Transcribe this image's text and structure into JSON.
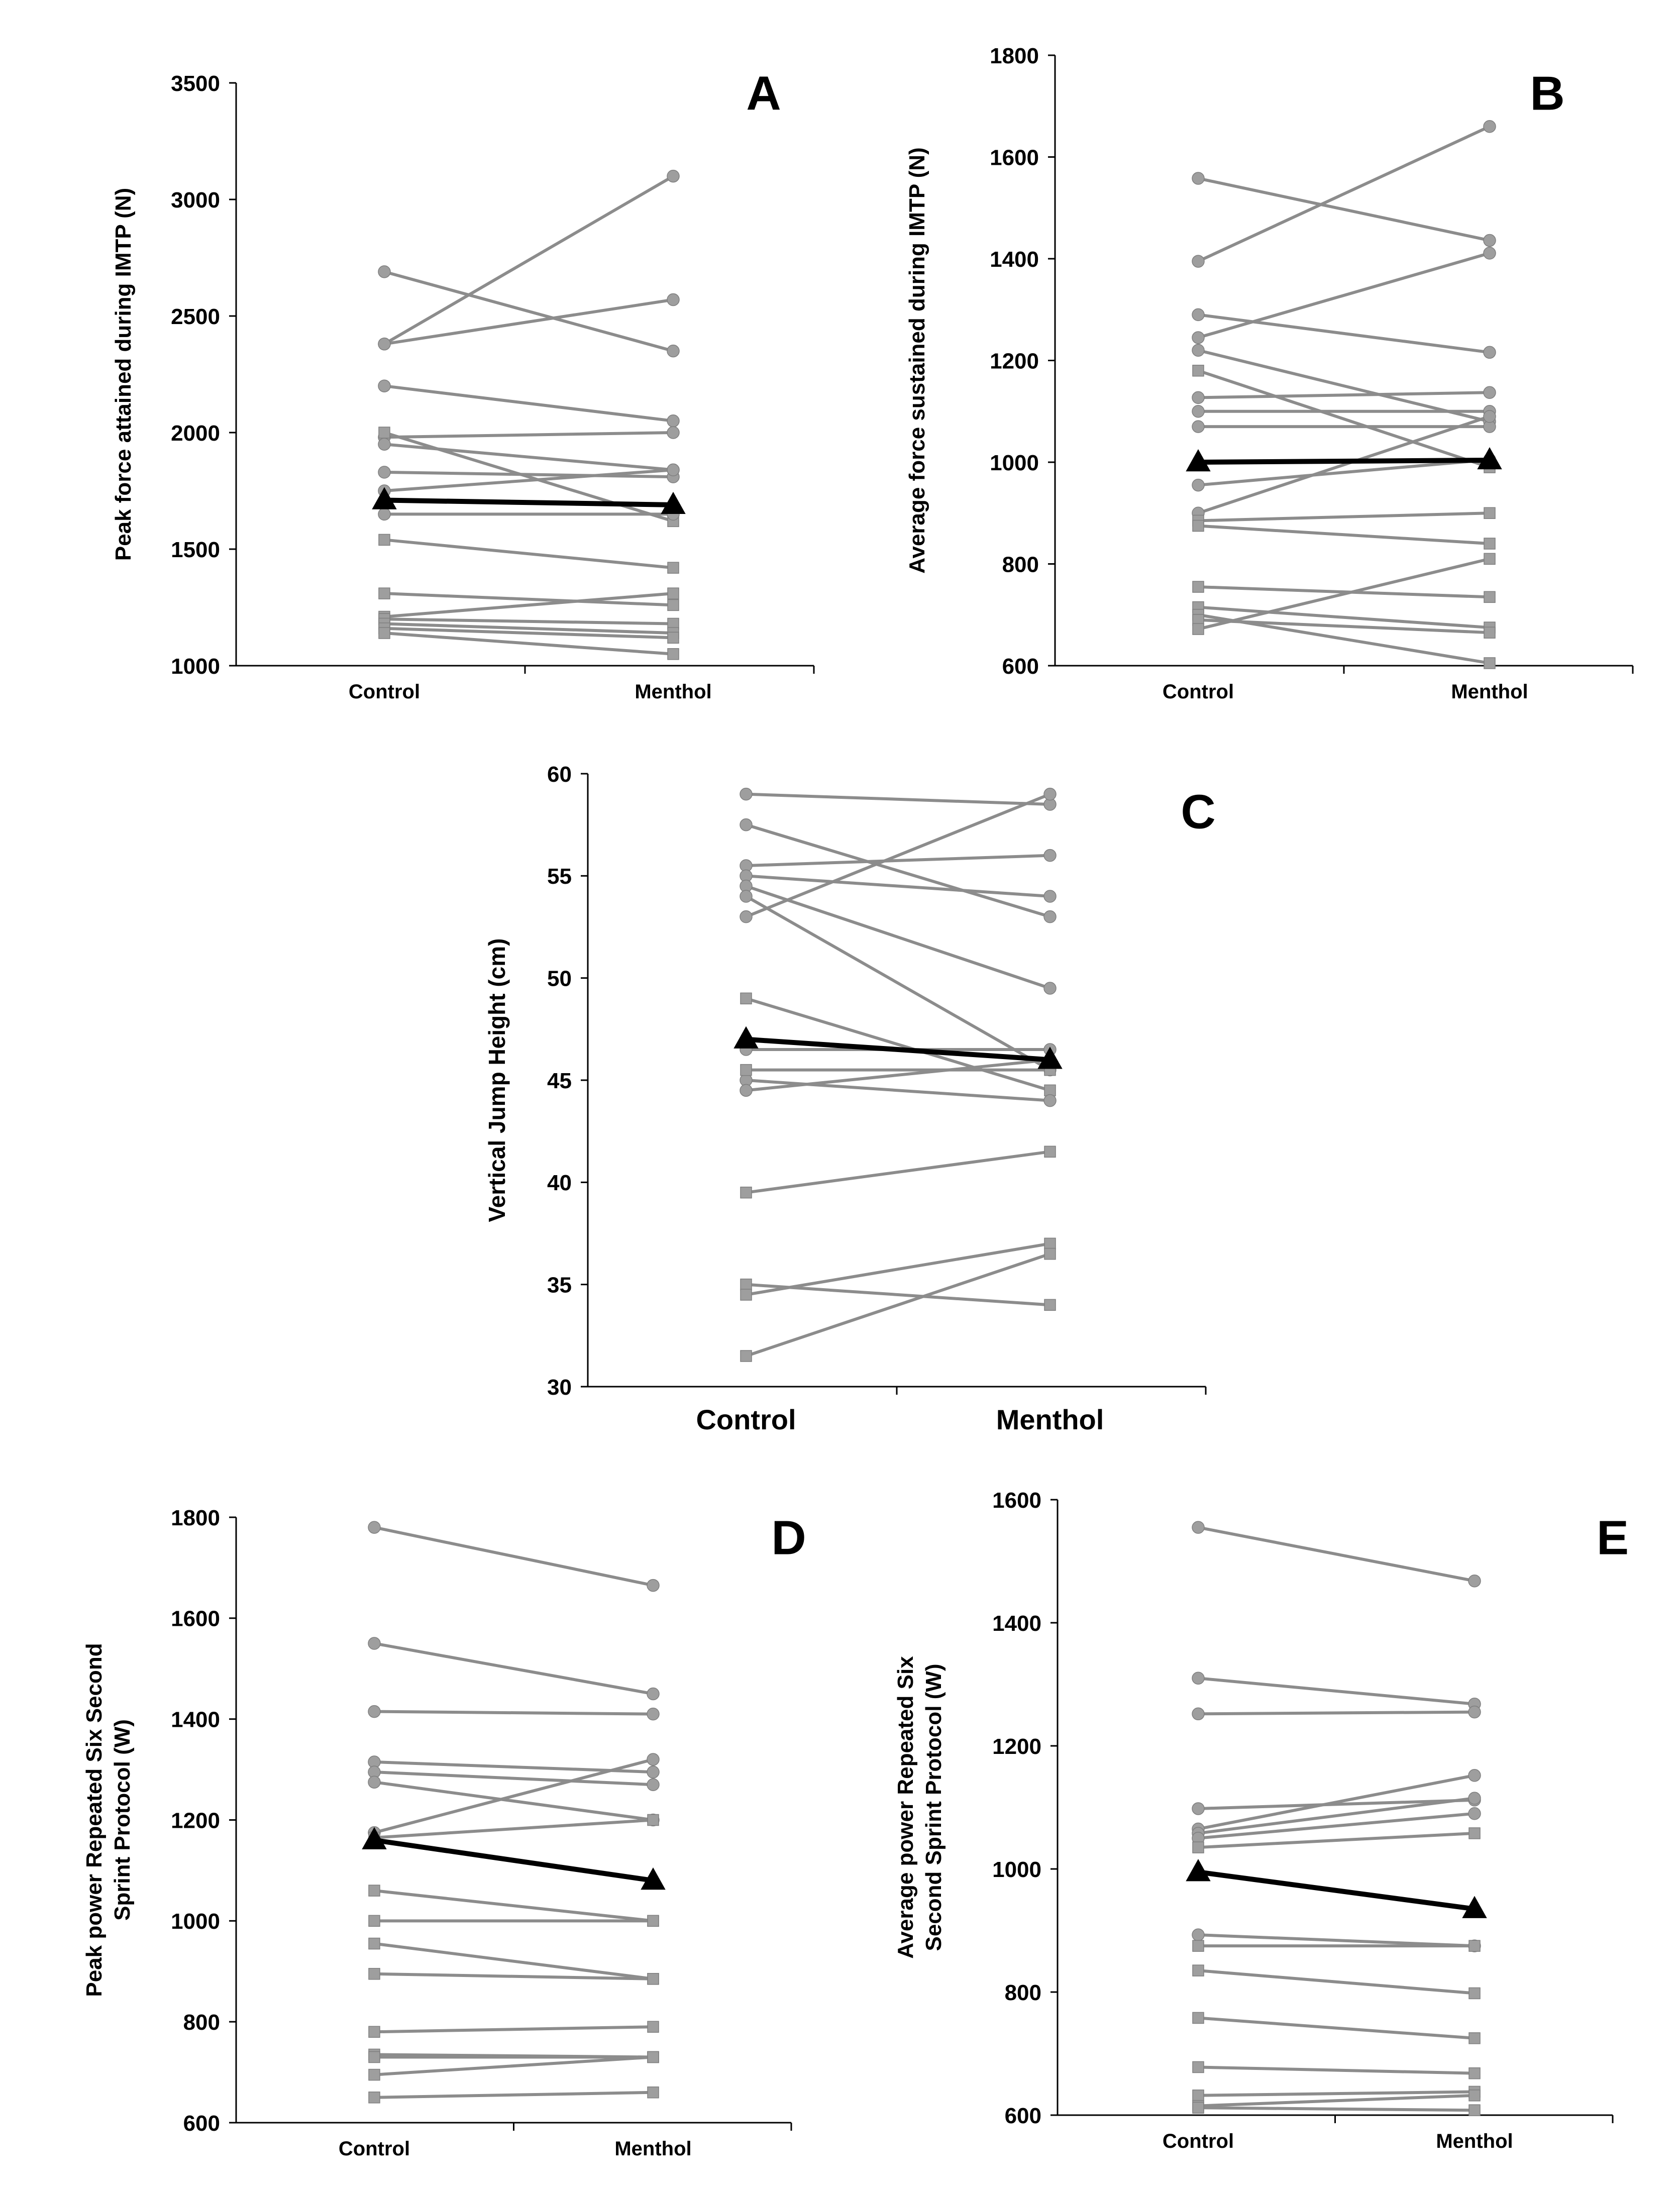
{
  "colors": {
    "subject": "#8c8c8c",
    "marker": "#9e9e9e",
    "mean": "#000000"
  },
  "chart_data": [
    {
      "panel": "A",
      "type": "line",
      "categories": [
        "Control",
        "Menthol"
      ],
      "ylabel": "Peak force attained during IMTP (N)",
      "ylim": [
        1000,
        3500
      ],
      "yticks": [
        1000,
        1500,
        2000,
        2500,
        3000,
        3500
      ],
      "series": [
        {
          "name": "s1",
          "marker": "circle",
          "values": [
            2380,
            3100
          ]
        },
        {
          "name": "s2",
          "marker": "circle",
          "values": [
            2690,
            2350
          ]
        },
        {
          "name": "s3",
          "marker": "circle",
          "values": [
            2380,
            2570
          ]
        },
        {
          "name": "s4",
          "marker": "circle",
          "values": [
            2200,
            2050
          ]
        },
        {
          "name": "s5",
          "marker": "circle",
          "values": [
            1980,
            2000
          ]
        },
        {
          "name": "s6",
          "marker": "circle",
          "values": [
            1950,
            1840
          ]
        },
        {
          "name": "s7",
          "marker": "circle",
          "values": [
            1830,
            1810
          ]
        },
        {
          "name": "s8",
          "marker": "circle",
          "values": [
            1750,
            1840
          ]
        },
        {
          "name": "s9",
          "marker": "square",
          "values": [
            2000,
            1620
          ]
        },
        {
          "name": "s10",
          "marker": "circle",
          "values": [
            1650,
            1650
          ]
        },
        {
          "name": "s11",
          "marker": "square",
          "values": [
            1540,
            1420
          ]
        },
        {
          "name": "s12",
          "marker": "square",
          "values": [
            1310,
            1260
          ]
        },
        {
          "name": "s13",
          "marker": "square",
          "values": [
            1210,
            1310
          ]
        },
        {
          "name": "s14",
          "marker": "square",
          "values": [
            1200,
            1180
          ]
        },
        {
          "name": "s15",
          "marker": "square",
          "values": [
            1180,
            1140
          ]
        },
        {
          "name": "s16",
          "marker": "square",
          "values": [
            1160,
            1120
          ]
        },
        {
          "name": "s17",
          "marker": "square",
          "values": [
            1140,
            1050
          ]
        },
        {
          "name": "Mean",
          "marker": "triangle",
          "mean": true,
          "values": [
            1710,
            1690
          ]
        }
      ]
    },
    {
      "panel": "B",
      "type": "line",
      "categories": [
        "Control",
        "Menthol"
      ],
      "ylabel": "Average force sustained during IMTP (N)",
      "ylim": [
        600,
        1800
      ],
      "yticks": [
        600,
        800,
        1000,
        1200,
        1400,
        1600,
        1800
      ],
      "series": [
        {
          "name": "s1",
          "marker": "circle",
          "values": [
            1558,
            1436
          ]
        },
        {
          "name": "s2",
          "marker": "circle",
          "values": [
            1395,
            1660
          ]
        },
        {
          "name": "s3",
          "marker": "circle",
          "values": [
            1290,
            1216
          ]
        },
        {
          "name": "s4",
          "marker": "circle",
          "values": [
            1245,
            1411
          ]
        },
        {
          "name": "s5",
          "marker": "circle",
          "values": [
            1220,
            1080
          ]
        },
        {
          "name": "s6",
          "marker": "circle",
          "values": [
            1127,
            1137
          ]
        },
        {
          "name": "s7",
          "marker": "circle",
          "values": [
            1100,
            1100
          ]
        },
        {
          "name": "s8",
          "marker": "circle",
          "values": [
            1070,
            1070
          ]
        },
        {
          "name": "s9",
          "marker": "square",
          "values": [
            1180,
            990
          ]
        },
        {
          "name": "s10",
          "marker": "circle",
          "values": [
            955,
            1005
          ]
        },
        {
          "name": "s11",
          "marker": "circle",
          "values": [
            900,
            1090
          ]
        },
        {
          "name": "s12",
          "marker": "square",
          "values": [
            885,
            900
          ]
        },
        {
          "name": "s13",
          "marker": "square",
          "values": [
            875,
            840
          ]
        },
        {
          "name": "s14",
          "marker": "square",
          "values": [
            755,
            735
          ]
        },
        {
          "name": "s15",
          "marker": "square",
          "values": [
            715,
            675
          ]
        },
        {
          "name": "s16",
          "marker": "square",
          "values": [
            700,
            605
          ]
        },
        {
          "name": "s17",
          "marker": "square",
          "values": [
            690,
            665
          ]
        },
        {
          "name": "s18",
          "marker": "square",
          "values": [
            672,
            810
          ]
        },
        {
          "name": "Mean",
          "marker": "triangle",
          "mean": true,
          "values": [
            1000,
            1004
          ]
        }
      ]
    },
    {
      "panel": "C",
      "type": "line",
      "categories": [
        "Control",
        "Menthol"
      ],
      "ylabel": "Vertical Jump Height (cm)",
      "ylim": [
        30,
        60
      ],
      "yticks": [
        30,
        35,
        40,
        45,
        50,
        55,
        60
      ],
      "series": [
        {
          "name": "s1",
          "marker": "circle",
          "values": [
            59.0,
            58.5
          ]
        },
        {
          "name": "s2",
          "marker": "circle",
          "values": [
            57.5,
            53.0
          ]
        },
        {
          "name": "s3",
          "marker": "circle",
          "values": [
            55.5,
            56.0
          ]
        },
        {
          "name": "s4",
          "marker": "circle",
          "values": [
            55.0,
            54.0
          ]
        },
        {
          "name": "s5",
          "marker": "circle",
          "values": [
            54.5,
            49.5
          ]
        },
        {
          "name": "s6",
          "marker": "circle",
          "values": [
            54.0,
            45.5
          ]
        },
        {
          "name": "s7",
          "marker": "circle",
          "values": [
            53.0,
            59.0
          ]
        },
        {
          "name": "s8",
          "marker": "square",
          "values": [
            49.0,
            44.5
          ]
        },
        {
          "name": "s9",
          "marker": "circle",
          "values": [
            46.5,
            46.5
          ]
        },
        {
          "name": "s10",
          "marker": "circle",
          "values": [
            45.0,
            44.0
          ]
        },
        {
          "name": "s11",
          "marker": "square",
          "values": [
            45.5,
            45.5
          ]
        },
        {
          "name": "s12",
          "marker": "circle",
          "values": [
            44.5,
            46.0
          ]
        },
        {
          "name": "s13",
          "marker": "square",
          "values": [
            39.5,
            41.5
          ]
        },
        {
          "name": "s14",
          "marker": "square",
          "values": [
            35.0,
            34.0
          ]
        },
        {
          "name": "s15",
          "marker": "square",
          "values": [
            34.5,
            37.0
          ]
        },
        {
          "name": "s16",
          "marker": "square",
          "values": [
            31.5,
            36.5
          ]
        },
        {
          "name": "Mean",
          "marker": "triangle",
          "mean": true,
          "values": [
            47.0,
            46.0
          ]
        }
      ]
    },
    {
      "panel": "D",
      "type": "line",
      "categories": [
        "Control",
        "Menthol"
      ],
      "ylabel": "Peak power Repeated Six Second Sprint Protocol (W)",
      "ylim": [
        600,
        1800
      ],
      "yticks": [
        600,
        800,
        1000,
        1200,
        1400,
        1600,
        1800
      ],
      "series": [
        {
          "name": "s1",
          "marker": "circle",
          "values": [
            1780,
            1665
          ]
        },
        {
          "name": "s2",
          "marker": "circle",
          "values": [
            1550,
            1450
          ]
        },
        {
          "name": "s3",
          "marker": "circle",
          "values": [
            1415,
            1410
          ]
        },
        {
          "name": "s4",
          "marker": "circle",
          "values": [
            1315,
            1295
          ]
        },
        {
          "name": "s5",
          "marker": "circle",
          "values": [
            1295,
            1270
          ]
        },
        {
          "name": "s6",
          "marker": "circle",
          "values": [
            1275,
            1200
          ]
        },
        {
          "name": "s7",
          "marker": "circle",
          "values": [
            1175,
            1320
          ]
        },
        {
          "name": "s8",
          "marker": "square",
          "values": [
            1165,
            1200
          ]
        },
        {
          "name": "s9",
          "marker": "square",
          "values": [
            1060,
            1000
          ]
        },
        {
          "name": "s10",
          "marker": "square",
          "values": [
            1000,
            1000
          ]
        },
        {
          "name": "s11",
          "marker": "square",
          "values": [
            955,
            885
          ]
        },
        {
          "name": "s12",
          "marker": "square",
          "values": [
            895,
            885
          ]
        },
        {
          "name": "s13",
          "marker": "square",
          "values": [
            780,
            790
          ]
        },
        {
          "name": "s14",
          "marker": "square",
          "values": [
            735,
            730
          ]
        },
        {
          "name": "s15",
          "marker": "square",
          "values": [
            730,
            730
          ]
        },
        {
          "name": "s16",
          "marker": "square",
          "values": [
            695,
            730
          ]
        },
        {
          "name": "s17",
          "marker": "square",
          "values": [
            650,
            660
          ]
        },
        {
          "name": "Mean",
          "marker": "triangle",
          "mean": true,
          "values": [
            1160,
            1080
          ]
        }
      ]
    },
    {
      "panel": "E",
      "type": "line",
      "categories": [
        "Control",
        "Menthol"
      ],
      "ylabel": "Average power Repeated Six Second Sprint Protocol (W)",
      "ylim": [
        600,
        1600
      ],
      "yticks": [
        600,
        800,
        1000,
        1200,
        1400,
        1600
      ],
      "series": [
        {
          "name": "s1",
          "marker": "circle",
          "values": [
            1555,
            1468
          ]
        },
        {
          "name": "s2",
          "marker": "circle",
          "values": [
            1310,
            1268
          ]
        },
        {
          "name": "s3",
          "marker": "circle",
          "values": [
            1252,
            1255
          ]
        },
        {
          "name": "s4",
          "marker": "circle",
          "values": [
            1098,
            1112
          ]
        },
        {
          "name": "s5",
          "marker": "circle",
          "values": [
            1065,
            1152
          ]
        },
        {
          "name": "s6",
          "marker": "circle",
          "values": [
            1058,
            1115
          ]
        },
        {
          "name": "s7",
          "marker": "circle",
          "values": [
            1050,
            1090
          ]
        },
        {
          "name": "s8",
          "marker": "square",
          "values": [
            1035,
            1058
          ]
        },
        {
          "name": "s9",
          "marker": "circle",
          "values": [
            893,
            875
          ]
        },
        {
          "name": "s10",
          "marker": "square",
          "values": [
            875,
            875
          ]
        },
        {
          "name": "s11",
          "marker": "square",
          "values": [
            835,
            798
          ]
        },
        {
          "name": "s12",
          "marker": "square",
          "values": [
            758,
            725
          ]
        },
        {
          "name": "s13",
          "marker": "square",
          "values": [
            678,
            668
          ]
        },
        {
          "name": "s14",
          "marker": "square",
          "values": [
            632,
            638
          ]
        },
        {
          "name": "s15",
          "marker": "square",
          "values": [
            615,
            632
          ]
        },
        {
          "name": "s16",
          "marker": "square",
          "values": [
            612,
            608
          ]
        },
        {
          "name": "Mean",
          "marker": "triangle",
          "mean": true,
          "values": [
            995,
            935
          ]
        }
      ]
    }
  ]
}
